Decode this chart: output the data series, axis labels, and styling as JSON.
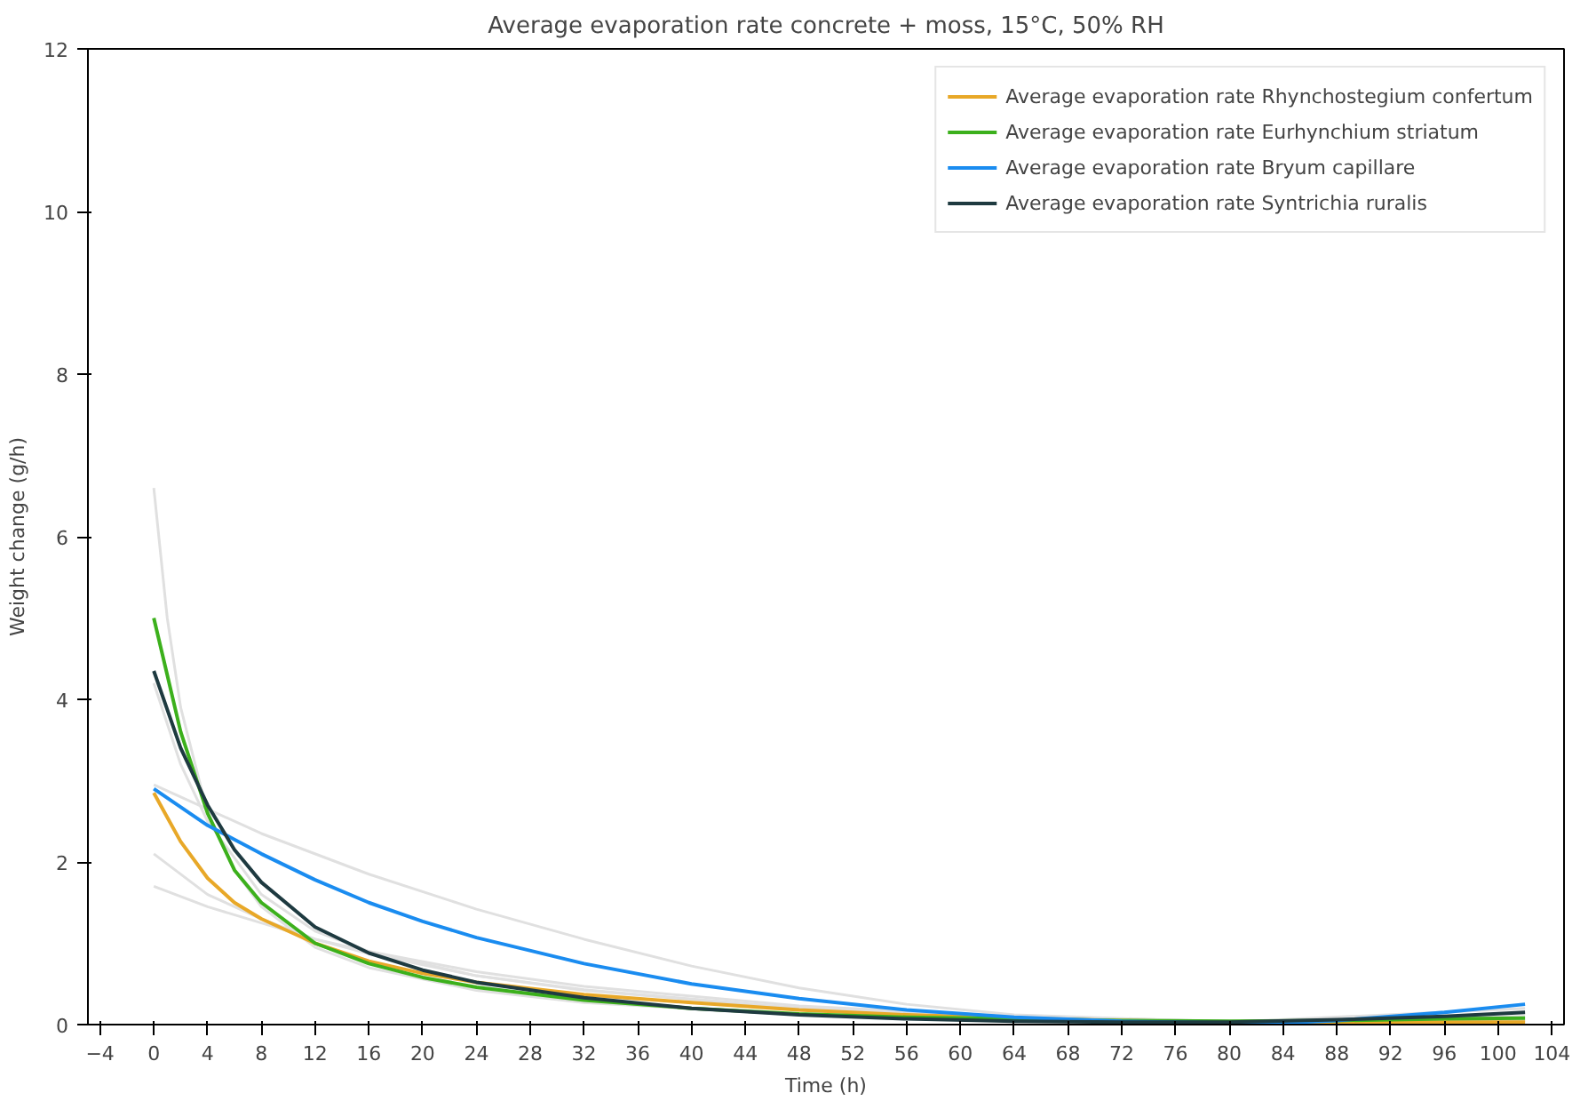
{
  "chart_data": {
    "type": "line",
    "title": "Average evaporation rate concrete + moss, 15°C, 50% RH",
    "xlabel": "Time (h)",
    "ylabel": "Weight change (g/h)",
    "xlim": [
      -4.9,
      104.9
    ],
    "xticks": [
      -4,
      0,
      4,
      8,
      12,
      16,
      20,
      24,
      28,
      32,
      36,
      40,
      44,
      48,
      52,
      56,
      60,
      64,
      68,
      72,
      76,
      80,
      84,
      88,
      92,
      96,
      100,
      104
    ],
    "ylim": [
      0,
      12
    ],
    "yticks": [
      0,
      2,
      4,
      6,
      8,
      10,
      12
    ],
    "grid": false,
    "legend": "top right",
    "marker": "none",
    "line_style": "solid",
    "series": [
      {
        "color": "#e0e0e0",
        "x": [
          0,
          1,
          2,
          4,
          6,
          8,
          12,
          16,
          24,
          32,
          48,
          64,
          80,
          102
        ],
        "values": [
          6.6,
          5.0,
          3.9,
          2.6,
          1.9,
          1.45,
          0.95,
          0.7,
          0.42,
          0.27,
          0.12,
          0.06,
          0.03,
          0.05
        ]
      },
      {
        "color": "#e0e0e0",
        "x": [
          0,
          8,
          16,
          24,
          32,
          40,
          48,
          56,
          64,
          80,
          102
        ],
        "values": [
          2.95,
          2.35,
          1.85,
          1.42,
          1.05,
          0.72,
          0.45,
          0.25,
          0.12,
          0.03,
          0.2
        ]
      },
      {
        "color": "#e0e0e0",
        "x": [
          0,
          4,
          8,
          12,
          16,
          24,
          32,
          48,
          64,
          80,
          102
        ],
        "values": [
          2.1,
          1.6,
          1.3,
          1.05,
          0.87,
          0.6,
          0.43,
          0.2,
          0.09,
          0.04,
          0.03
        ]
      },
      {
        "color": "#e0e0e0",
        "x": [
          0,
          4,
          8,
          12,
          16,
          24,
          32,
          48,
          64,
          80,
          102
        ],
        "values": [
          1.7,
          1.45,
          1.25,
          1.05,
          0.9,
          0.65,
          0.47,
          0.23,
          0.1,
          0.04,
          0.05
        ]
      },
      {
        "color": "#e0e0e0",
        "x": [
          0,
          2,
          4,
          8,
          12,
          16,
          24,
          32,
          48,
          64,
          80,
          102
        ],
        "values": [
          4.2,
          3.2,
          2.5,
          1.6,
          1.15,
          0.9,
          0.6,
          0.42,
          0.2,
          0.08,
          0.03,
          0.1
        ]
      },
      {
        "name": "Average evaporation rate Rhynchostegium confertum",
        "color": "#e8a828",
        "x": [
          0,
          1,
          2,
          4,
          6,
          8,
          12,
          16,
          20,
          24,
          32,
          40,
          48,
          56,
          64,
          72,
          80,
          88,
          96,
          102
        ],
        "values": [
          2.85,
          2.55,
          2.25,
          1.8,
          1.5,
          1.3,
          1.0,
          0.78,
          0.63,
          0.52,
          0.37,
          0.27,
          0.18,
          0.12,
          0.08,
          0.05,
          0.03,
          0.03,
          0.03,
          0.03
        ]
      },
      {
        "name": "Average evaporation rate Eurhynchium striatum",
        "color": "#3cb01c",
        "x": [
          0,
          1,
          2,
          4,
          6,
          8,
          12,
          16,
          20,
          24,
          32,
          40,
          48,
          56,
          64,
          72,
          80,
          88,
          96,
          102
        ],
        "values": [
          5.0,
          4.3,
          3.6,
          2.6,
          1.9,
          1.5,
          1.0,
          0.75,
          0.58,
          0.46,
          0.3,
          0.2,
          0.13,
          0.09,
          0.07,
          0.05,
          0.04,
          0.05,
          0.07,
          0.08
        ]
      },
      {
        "name": "Average evaporation rate Bryum capillare",
        "color": "#1a8cf0",
        "x": [
          0,
          4,
          8,
          12,
          16,
          20,
          24,
          32,
          40,
          48,
          56,
          64,
          72,
          80,
          84,
          88,
          96,
          102
        ],
        "values": [
          2.9,
          2.45,
          2.1,
          1.78,
          1.5,
          1.27,
          1.07,
          0.75,
          0.5,
          0.32,
          0.18,
          0.09,
          0.04,
          0.02,
          0.02,
          0.05,
          0.15,
          0.25
        ]
      },
      {
        "name": "Average evaporation rate Syntrichia ruralis",
        "color": "#1e3a40",
        "x": [
          0,
          2,
          4,
          6,
          8,
          12,
          16,
          20,
          24,
          32,
          40,
          48,
          56,
          64,
          72,
          80,
          88,
          96,
          102
        ],
        "values": [
          4.35,
          3.4,
          2.7,
          2.15,
          1.75,
          1.2,
          0.88,
          0.67,
          0.52,
          0.33,
          0.2,
          0.12,
          0.07,
          0.04,
          0.03,
          0.03,
          0.06,
          0.1,
          0.15
        ]
      }
    ]
  }
}
